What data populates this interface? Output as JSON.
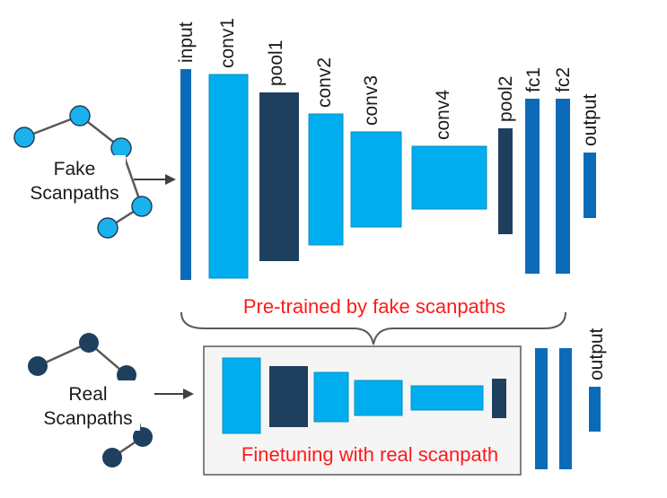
{
  "top_network": {
    "layers": [
      {
        "label": "input",
        "style": "fc"
      },
      {
        "label": "conv1",
        "style": "conv"
      },
      {
        "label": "pool1",
        "style": "pool"
      },
      {
        "label": "conv2",
        "style": "conv"
      },
      {
        "label": "conv3",
        "style": "conv"
      },
      {
        "label": "conv4",
        "style": "conv"
      },
      {
        "label": "pool2",
        "style": "pool"
      },
      {
        "label": "fc1",
        "style": "fc"
      },
      {
        "label": "fc2",
        "style": "fc"
      },
      {
        "label": "output",
        "style": "fc"
      }
    ]
  },
  "fake_scanpaths": {
    "line1": "Fake",
    "line2": "Scanpaths"
  },
  "real_scanpaths": {
    "line1": "Real",
    "line2": "Scanpaths"
  },
  "pretrained_caption": "Pre-trained by fake scanpaths",
  "finetune_caption": "Finetuning with real scanpath",
  "bottom_output_label": "output",
  "colors": {
    "conv": "#00aeef",
    "pool": "#1f3f5f",
    "fc": "#0b6bb8",
    "fake_node": "#1ab2ee",
    "real_node": "#1f3f5f",
    "caption": "#ff1a1a",
    "edge": "#595959",
    "arrow": "#404040",
    "text": "#1a1a1a",
    "box_fill": "#f5f5f5",
    "box_border": "#595959"
  }
}
